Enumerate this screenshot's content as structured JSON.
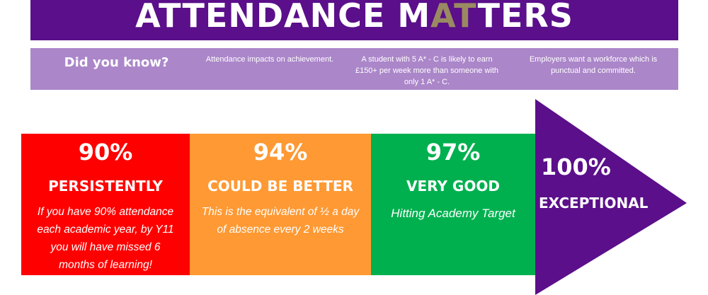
{
  "title": {
    "part1": "ATTENDANCE M",
    "part2": "AT",
    "part3": "TERS"
  },
  "info": {
    "heading": "Did you know?",
    "facts": [
      "Attendance impacts on achievement.",
      "A student with 5 A* - C is likely to earn £150+ per week more than someone with only 1 A* - C.",
      "Employers want a workforce which is punctual and committed."
    ]
  },
  "bands": [
    {
      "percent": "90%",
      "label": "PERSISTENTLY",
      "description": "If you have 90% attendance each academic year, by Y11 you will have missed 6 months of learning!"
    },
    {
      "percent": "94%",
      "label": "COULD BE BETTER",
      "description": "This is the equivalent of ½ a day of absence every 2 weeks"
    },
    {
      "percent": "97%",
      "label": "VERY GOOD",
      "description": "Hitting Academy Target"
    }
  ],
  "arrow": {
    "percent": "100%",
    "label": "EXCEPTIONAL"
  },
  "colors": {
    "title_bg": "#5b0f8a",
    "title_accent": "#9a8a62",
    "info_bg": "#ab86c9",
    "red": "#ff0000",
    "orange": "#ff9933",
    "green": "#00b04f",
    "arrow": "#5b0f8a"
  }
}
